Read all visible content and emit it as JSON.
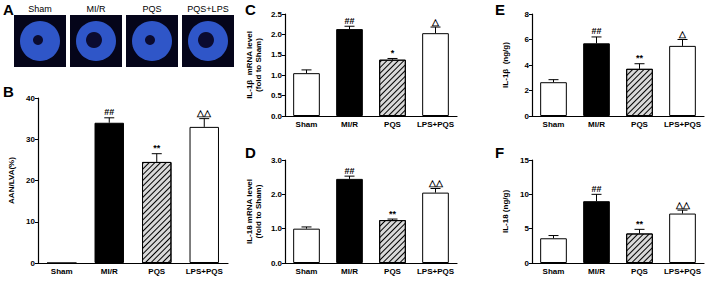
{
  "chart_data": [
    {
      "type": "image",
      "title": "A",
      "labels": [
        "Sham",
        "MI/R",
        "PQS",
        "PQS+LPS"
      ]
    },
    {
      "type": "bar",
      "title": "B",
      "ylabel": "AAN/LVA(%)",
      "categories": [
        "Sham",
        "MI/R",
        "PQS",
        "LPS+PQS"
      ],
      "values": [
        0,
        34,
        24.5,
        33
      ],
      "errors": [
        0,
        1.2,
        2,
        2
      ],
      "annotations": [
        null,
        "##",
        "**",
        "△△"
      ],
      "colors": [
        "#ffffff",
        "#000000",
        "#d9d9d9",
        "#ffffff"
      ],
      "ylim": [
        0,
        40
      ],
      "yticks": [
        0,
        10,
        20,
        30,
        40
      ],
      "grid": false
    },
    {
      "type": "bar",
      "title": "C",
      "ylabel": "IL-1β  mRNA level\n(fold to Sham)",
      "categories": [
        "Sham",
        "MI/R",
        "PQS",
        "LPS+PQS"
      ],
      "values": [
        1.05,
        2.13,
        1.38,
        2.03
      ],
      "errors": [
        0.08,
        0.07,
        0.03,
        0.15
      ],
      "annotations": [
        null,
        "##",
        "*",
        "△"
      ],
      "colors": [
        "#ffffff",
        "#000000",
        "#d9d9d9",
        "#ffffff"
      ],
      "ylim": [
        0,
        2.5
      ],
      "yticks": [
        {
          "value": 0,
          "label": "0.0"
        },
        0.5,
        {
          "value": 1,
          "label": "1.0"
        },
        1.5,
        {
          "value": 2,
          "label": "2.0"
        },
        2.5
      ],
      "grid": false
    },
    {
      "type": "bar",
      "title": "D",
      "ylabel": "IL-18 mRNA level\n(fold to Sham)",
      "categories": [
        "Sham",
        "MI/R",
        "PQS",
        "LPS+PQS"
      ],
      "values": [
        1.0,
        2.45,
        1.25,
        2.05
      ],
      "errors": [
        0.05,
        0.08,
        0.03,
        0.12
      ],
      "annotations": [
        null,
        "##",
        "**",
        "△△"
      ],
      "colors": [
        "#ffffff",
        "#000000",
        "#d9d9d9",
        "#ffffff"
      ],
      "ylim": [
        0,
        3
      ],
      "yticks": [
        {
          "value": 0,
          "label": "0.0"
        },
        {
          "value": 1,
          "label": "1.0"
        },
        {
          "value": 2,
          "label": "2.0"
        },
        {
          "value": 3,
          "label": "3.0"
        }
      ],
      "grid": false
    },
    {
      "type": "bar",
      "title": "E",
      "ylabel": "IL-1β  (ng/g)",
      "categories": [
        "Sham",
        "MI/R",
        "PQS",
        "LPS+PQS"
      ],
      "values": [
        2.65,
        5.7,
        3.7,
        5.5
      ],
      "errors": [
        0.2,
        0.5,
        0.4,
        0.5
      ],
      "annotations": [
        null,
        "##",
        "**",
        "△"
      ],
      "colors": [
        "#ffffff",
        "#000000",
        "#d9d9d9",
        "#ffffff"
      ],
      "ylim": [
        0,
        8
      ],
      "yticks": [
        0,
        2,
        4,
        6,
        8
      ],
      "grid": false
    },
    {
      "type": "bar",
      "title": "F",
      "ylabel": "IL-18 (ng/g)",
      "categories": [
        "Sham",
        "MI/R",
        "PQS",
        "LPS+PQS"
      ],
      "values": [
        3.6,
        9.0,
        4.3,
        7.2
      ],
      "errors": [
        0.4,
        1.0,
        0.6,
        0.5
      ],
      "annotations": [
        null,
        "##",
        "**",
        "△△"
      ],
      "colors": [
        "#ffffff",
        "#000000",
        "#d9d9d9",
        "#ffffff"
      ],
      "ylim": [
        0,
        15
      ],
      "yticks": [
        0,
        5,
        10,
        15
      ],
      "grid": false
    }
  ]
}
